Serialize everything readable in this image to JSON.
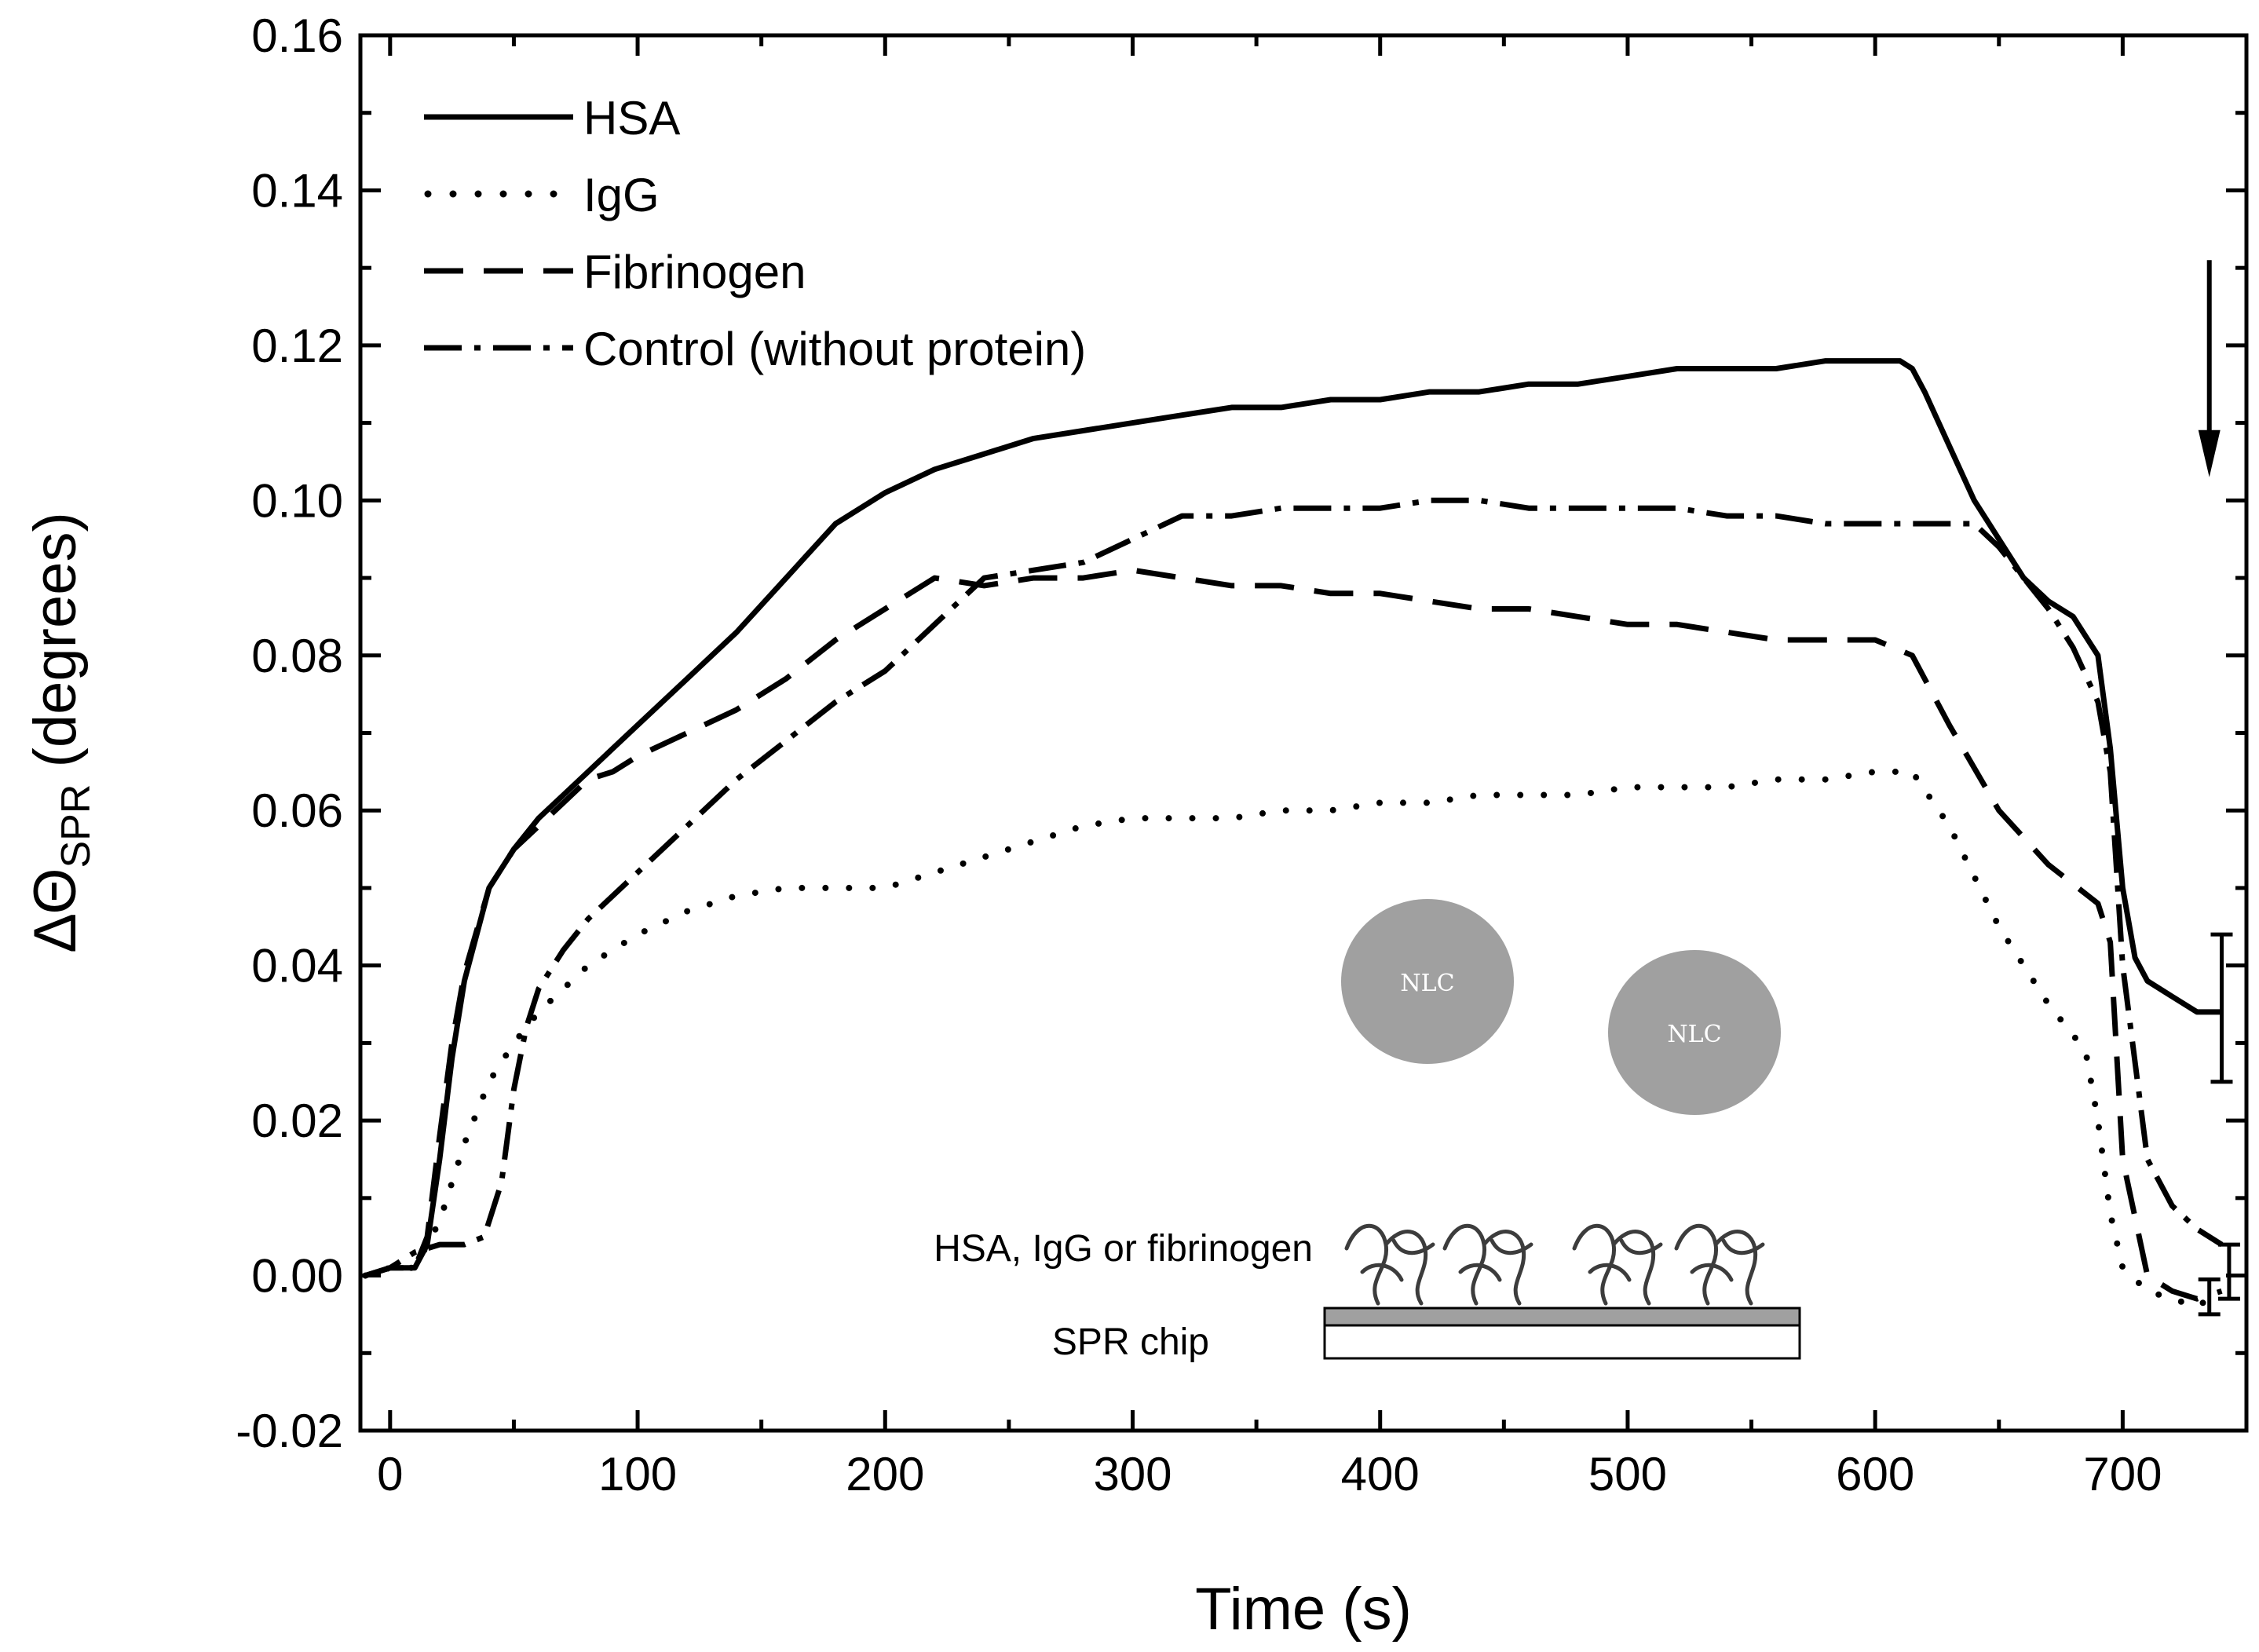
{
  "chart_data": {
    "type": "line",
    "title": "",
    "xlabel": "Time (s)",
    "ylabel_prefix": "ΔΘ",
    "ylabel_subscript": "SPR",
    "ylabel_suffix": " (degrees)",
    "xlim": [
      -12,
      750
    ],
    "ylim": [
      -0.02,
      0.16
    ],
    "x_ticks": [
      0,
      100,
      200,
      300,
      400,
      500,
      600,
      700
    ],
    "x_tick_labels": [
      "0",
      "100",
      "200",
      "300",
      "400",
      "500",
      "600",
      "700"
    ],
    "y_ticks": [
      -0.02,
      0.0,
      0.02,
      0.04,
      0.06,
      0.08,
      0.1,
      0.12,
      0.14,
      0.16
    ],
    "y_tick_labels": [
      "-0.02",
      "0.00",
      "0.02",
      "0.04",
      "0.06",
      "0.08",
      "0.10",
      "0.12",
      "0.14",
      "0.16"
    ],
    "legend_position": "top-left",
    "series": [
      {
        "name": "HSA",
        "style": "solid",
        "x": [
          -10,
          0,
          10,
          15,
          20,
          25,
          30,
          40,
          50,
          60,
          70,
          80,
          90,
          100,
          120,
          140,
          160,
          180,
          200,
          220,
          240,
          260,
          280,
          300,
          320,
          340,
          360,
          380,
          400,
          420,
          440,
          460,
          480,
          500,
          520,
          540,
          560,
          580,
          600,
          610,
          615,
          620,
          630,
          640,
          650,
          660,
          670,
          680,
          690,
          695,
          700,
          705,
          710,
          720,
          730,
          740
        ],
        "y": [
          0.0,
          0.001,
          0.001,
          0.004,
          0.015,
          0.028,
          0.038,
          0.05,
          0.055,
          0.059,
          0.062,
          0.065,
          0.068,
          0.071,
          0.077,
          0.083,
          0.09,
          0.097,
          0.101,
          0.104,
          0.106,
          0.108,
          0.109,
          0.11,
          0.111,
          0.112,
          0.112,
          0.113,
          0.113,
          0.114,
          0.114,
          0.115,
          0.115,
          0.116,
          0.117,
          0.117,
          0.117,
          0.118,
          0.118,
          0.118,
          0.117,
          0.114,
          0.107,
          0.1,
          0.095,
          0.09,
          0.087,
          0.085,
          0.08,
          0.068,
          0.05,
          0.041,
          0.038,
          0.036,
          0.034,
          0.034
        ]
      },
      {
        "name": "IgG",
        "style": "dotted",
        "x": [
          -10,
          0,
          10,
          20,
          30,
          40,
          50,
          60,
          70,
          80,
          100,
          120,
          140,
          160,
          180,
          200,
          220,
          240,
          260,
          280,
          300,
          320,
          340,
          360,
          380,
          400,
          420,
          440,
          460,
          480,
          500,
          520,
          540,
          560,
          580,
          600,
          615,
          630,
          650,
          670,
          685,
          690,
          695,
          700,
          710,
          720,
          730,
          740
        ],
        "y": [
          0.0,
          0.001,
          0.001,
          0.007,
          0.017,
          0.025,
          0.03,
          0.034,
          0.037,
          0.04,
          0.044,
          0.047,
          0.049,
          0.05,
          0.05,
          0.05,
          0.052,
          0.054,
          0.056,
          0.058,
          0.059,
          0.059,
          0.059,
          0.06,
          0.06,
          0.061,
          0.061,
          0.062,
          0.062,
          0.062,
          0.063,
          0.063,
          0.063,
          0.064,
          0.064,
          0.065,
          0.065,
          0.058,
          0.045,
          0.035,
          0.029,
          0.02,
          0.008,
          0.001,
          -0.002,
          -0.003,
          -0.004,
          -0.002
        ]
      },
      {
        "name": "Fibrinogen",
        "style": "dashed",
        "x": [
          -10,
          0,
          10,
          15,
          20,
          25,
          30,
          40,
          50,
          60,
          70,
          80,
          90,
          100,
          120,
          140,
          160,
          180,
          200,
          220,
          240,
          260,
          280,
          300,
          320,
          340,
          360,
          380,
          400,
          420,
          440,
          460,
          480,
          500,
          520,
          540,
          560,
          580,
          600,
          615,
          630,
          650,
          670,
          690,
          695,
          700,
          710,
          720,
          730,
          740
        ],
        "y": [
          0.0,
          0.001,
          0.001,
          0.005,
          0.018,
          0.03,
          0.039,
          0.05,
          0.055,
          0.058,
          0.061,
          0.064,
          0.065,
          0.067,
          0.07,
          0.073,
          0.077,
          0.082,
          0.086,
          0.09,
          0.089,
          0.09,
          0.09,
          0.091,
          0.09,
          0.089,
          0.089,
          0.088,
          0.088,
          0.087,
          0.086,
          0.086,
          0.085,
          0.084,
          0.084,
          0.083,
          0.082,
          0.082,
          0.082,
          0.08,
          0.071,
          0.06,
          0.053,
          0.048,
          0.043,
          0.015,
          0.0,
          -0.002,
          -0.003,
          -0.002
        ]
      },
      {
        "name": "Control (without protein)",
        "style": "dashdot",
        "x": [
          -10,
          0,
          10,
          20,
          30,
          38,
          45,
          50,
          55,
          60,
          70,
          80,
          100,
          120,
          140,
          160,
          180,
          200,
          220,
          240,
          260,
          280,
          300,
          320,
          340,
          360,
          380,
          400,
          420,
          440,
          460,
          480,
          500,
          520,
          540,
          560,
          580,
          600,
          620,
          640,
          650,
          660,
          670,
          680,
          690,
          695,
          700,
          710,
          720,
          730,
          740
        ],
        "y": [
          0.0,
          0.001,
          0.003,
          0.004,
          0.004,
          0.005,
          0.012,
          0.024,
          0.032,
          0.037,
          0.042,
          0.046,
          0.052,
          0.058,
          0.064,
          0.069,
          0.074,
          0.078,
          0.084,
          0.09,
          0.091,
          0.092,
          0.095,
          0.098,
          0.098,
          0.099,
          0.099,
          0.099,
          0.1,
          0.1,
          0.099,
          0.099,
          0.099,
          0.099,
          0.098,
          0.098,
          0.097,
          0.097,
          0.097,
          0.097,
          0.094,
          0.09,
          0.086,
          0.081,
          0.074,
          0.065,
          0.04,
          0.015,
          0.009,
          0.006,
          0.004
        ]
      }
    ],
    "error_bars": [
      {
        "x": 740,
        "y": 0.034,
        "low": 0.025,
        "high": 0.044
      },
      {
        "x": 735,
        "y": -0.003,
        "low": -0.005,
        "high": -0.0005
      },
      {
        "x": 743,
        "y": 0.0,
        "low": -0.003,
        "high": 0.004
      }
    ],
    "arrow_annotation": {
      "x": 735,
      "y_start": 0.131,
      "y_end": 0.103
    }
  },
  "inset": {
    "particle_labels": [
      "NLC",
      "NLC"
    ],
    "protein_label": "HSA, IgG or fibrinogen",
    "chip_label": "SPR chip"
  },
  "colors": {
    "line": "#000000",
    "nlc_fill": "#a0a0a0",
    "chip_top": "#a0a0a0",
    "protein": "#3c3c3c"
  }
}
